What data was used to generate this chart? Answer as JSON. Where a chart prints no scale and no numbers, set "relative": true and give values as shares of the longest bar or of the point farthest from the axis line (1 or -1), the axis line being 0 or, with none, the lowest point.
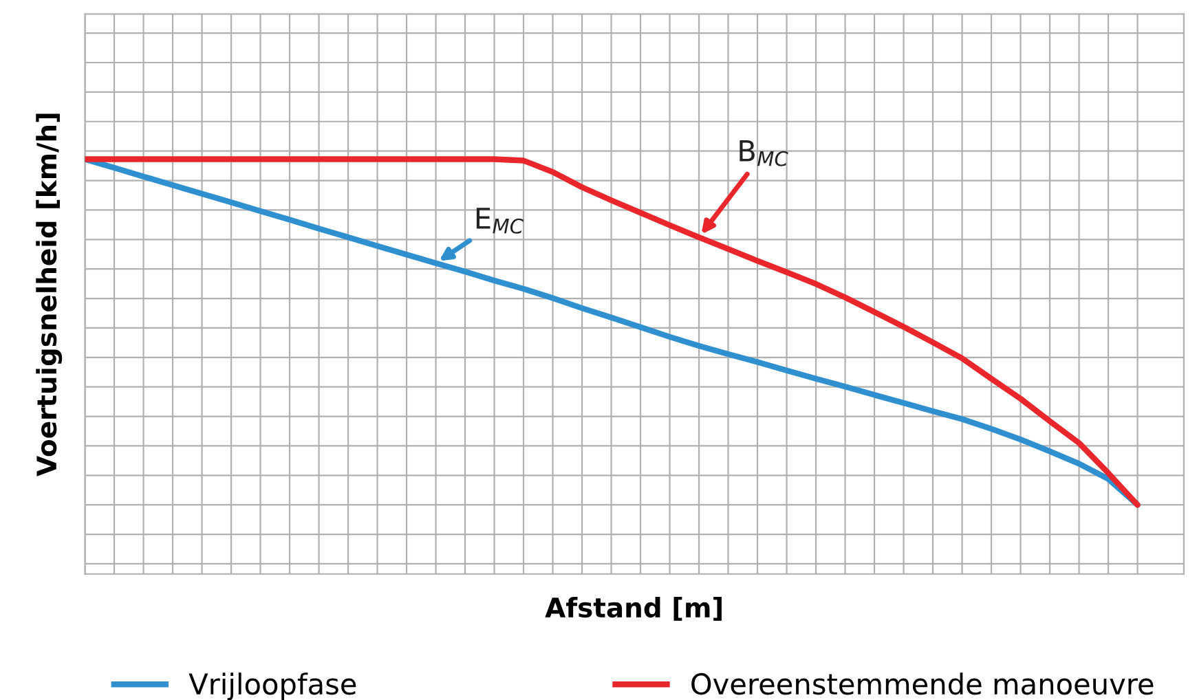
{
  "chart_data": {
    "type": "line",
    "relative": true,
    "xlabel": "Afstand [m]",
    "ylabel": "Voertuigsnelheid [km/h]",
    "categories": [
      null,
      null,
      null,
      null,
      null,
      null,
      null,
      null,
      null,
      null,
      null,
      null,
      null,
      null,
      null,
      null,
      null,
      null,
      null,
      null,
      null,
      null,
      null,
      null,
      null,
      null,
      null,
      null,
      null,
      null,
      null,
      null,
      null,
      null,
      null,
      null,
      null
    ],
    "series": [
      {
        "name": "Vrijloopfase",
        "color": "#2f8fcf",
        "values": [
          1.0,
          0.975,
          0.95,
          0.925,
          0.9,
          0.875,
          0.85,
          0.825,
          0.799,
          0.774,
          0.749,
          0.724,
          0.699,
          0.675,
          0.649,
          0.625,
          0.598,
          0.569,
          0.542,
          0.514,
          0.486,
          0.46,
          0.436,
          0.413,
          0.389,
          0.365,
          0.342,
          0.318,
          0.295,
          0.271,
          0.248,
          0.22,
          0.189,
          0.155,
          0.119,
          0.075,
          0.0
        ]
      },
      {
        "name": "Overeenstemmende manoeuvre",
        "color": "#e8262b",
        "values": [
          1.0,
          1.0,
          1.0,
          1.0,
          1.0,
          1.0,
          1.0,
          1.0,
          1.0,
          1.0,
          1.0,
          1.0,
          1.0,
          1.0,
          1.0,
          0.996,
          0.963,
          0.919,
          0.881,
          0.845,
          0.809,
          0.774,
          0.74,
          0.706,
          0.673,
          0.639,
          0.6,
          0.558,
          0.515,
          0.47,
          0.424,
          0.365,
          0.307,
          0.242,
          0.179,
          0.092,
          0.0
        ]
      }
    ],
    "annotations": [
      "E$_{MC}$",
      "B$_{MC}$"
    ],
    "grid": true,
    "legend": "bottom",
    "marker": "none",
    "line_style": "solid",
    "tick_labels": false
  }
}
